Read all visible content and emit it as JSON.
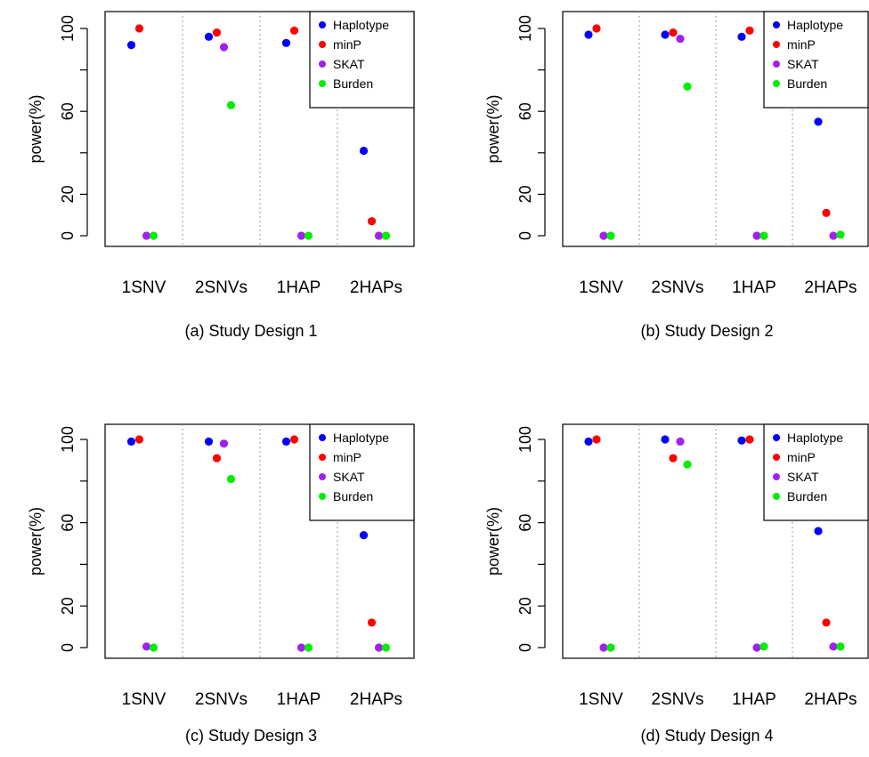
{
  "chart_data": [
    {
      "type": "scatter",
      "caption": "(a) Study Design 1",
      "ylabel": "power(%)",
      "categories": [
        "1SNV",
        "2SNVs",
        "1HAP",
        "2HAPs"
      ],
      "yticks": [
        0,
        20,
        60,
        100
      ],
      "ylim": [
        0,
        100
      ],
      "grid": false,
      "separators": "dotted vertical lines between categories",
      "legend": {
        "position": "top-right",
        "entries": [
          "Haplotype",
          "minP",
          "SKAT",
          "Burden"
        ]
      },
      "series": [
        {
          "name": "Haplotype",
          "color": "#0000ff",
          "values": [
            92,
            96,
            93,
            41
          ]
        },
        {
          "name": "minP",
          "color": "#ff0000",
          "values": [
            100,
            98,
            99,
            7
          ]
        },
        {
          "name": "SKAT",
          "color": "#a020f0",
          "values": [
            0,
            91,
            0,
            0
          ]
        },
        {
          "name": "Burden",
          "color": "#00ee00",
          "values": [
            0,
            63,
            0,
            0
          ]
        }
      ]
    },
    {
      "type": "scatter",
      "caption": "(b) Study Design 2",
      "ylabel": "power(%)",
      "categories": [
        "1SNV",
        "2SNVs",
        "1HAP",
        "2HAPs"
      ],
      "yticks": [
        0,
        20,
        60,
        100
      ],
      "ylim": [
        0,
        100
      ],
      "grid": false,
      "separators": "dotted vertical lines between categories",
      "legend": {
        "position": "top-right",
        "entries": [
          "Haplotype",
          "minP",
          "SKAT",
          "Burden"
        ]
      },
      "series": [
        {
          "name": "Haplotype",
          "color": "#0000ff",
          "values": [
            97,
            97,
            96,
            55
          ]
        },
        {
          "name": "minP",
          "color": "#ff0000",
          "values": [
            100,
            98,
            99,
            11
          ]
        },
        {
          "name": "SKAT",
          "color": "#a020f0",
          "values": [
            0,
            95,
            0,
            0
          ]
        },
        {
          "name": "Burden",
          "color": "#00ee00",
          "values": [
            0,
            72,
            0,
            0.5
          ]
        }
      ]
    },
    {
      "type": "scatter",
      "caption": "(c) Study Design 3",
      "ylabel": "power(%)",
      "categories": [
        "1SNV",
        "2SNVs",
        "1HAP",
        "2HAPs"
      ],
      "yticks": [
        0,
        20,
        60,
        100
      ],
      "ylim": [
        0,
        100
      ],
      "grid": false,
      "separators": "dotted vertical lines between categories",
      "legend": {
        "position": "top-right",
        "entries": [
          "Haplotype",
          "minP",
          "SKAT",
          "Burden"
        ]
      },
      "series": [
        {
          "name": "Haplotype",
          "color": "#0000ff",
          "values": [
            99,
            99,
            99,
            54
          ]
        },
        {
          "name": "minP",
          "color": "#ff0000",
          "values": [
            100,
            91,
            100,
            12
          ]
        },
        {
          "name": "SKAT",
          "color": "#a020f0",
          "values": [
            0.5,
            98,
            0,
            0
          ]
        },
        {
          "name": "Burden",
          "color": "#00ee00",
          "values": [
            0,
            81,
            0,
            0
          ]
        }
      ]
    },
    {
      "type": "scatter",
      "caption": "(d) Study Design 4",
      "ylabel": "power(%)",
      "categories": [
        "1SNV",
        "2SNVs",
        "1HAP",
        "2HAPs"
      ],
      "yticks": [
        0,
        20,
        60,
        100
      ],
      "ylim": [
        0,
        100
      ],
      "grid": false,
      "separators": "dotted vertical lines between categories",
      "legend": {
        "position": "top-right",
        "entries": [
          "Haplotype",
          "minP",
          "SKAT",
          "Burden"
        ]
      },
      "series": [
        {
          "name": "Haplotype",
          "color": "#0000ff",
          "values": [
            99,
            100,
            99.5,
            56
          ]
        },
        {
          "name": "minP",
          "color": "#ff0000",
          "values": [
            100,
            91,
            100,
            12
          ]
        },
        {
          "name": "SKAT",
          "color": "#a020f0",
          "values": [
            0,
            99,
            0,
            0.5
          ]
        },
        {
          "name": "Burden",
          "color": "#00ee00",
          "values": [
            0,
            88,
            0.5,
            0.5
          ]
        }
      ]
    }
  ]
}
